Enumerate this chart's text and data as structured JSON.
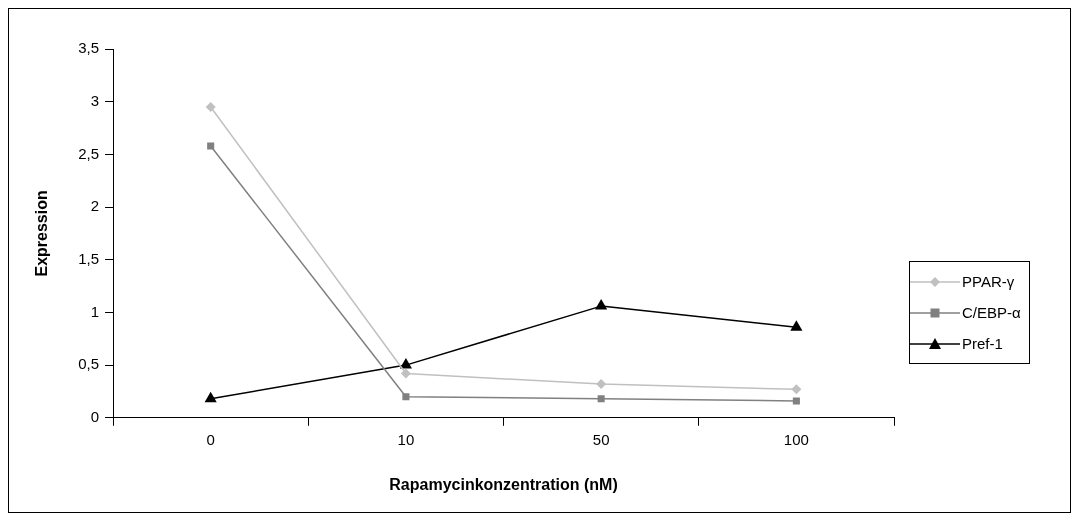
{
  "chart_data": {
    "type": "line",
    "xlabel": "Rapamycinkonzentration (nM)",
    "ylabel": "Expression",
    "categories": [
      "0",
      "10",
      "50",
      "100"
    ],
    "ylim": [
      0,
      3.5
    ],
    "yticks": [
      0,
      {
        "value": 0.5,
        "label": "0,5"
      },
      1,
      {
        "value": 1.5,
        "label": "1,5"
      },
      2,
      {
        "value": 2.5,
        "label": "2,5"
      },
      3,
      {
        "value": 3.5,
        "label": "3,5"
      }
    ],
    "grid": false,
    "legend": "right",
    "line_style": "solid",
    "series": [
      {
        "name": "PPAR-γ",
        "color": "#c0c0c0",
        "marker": "diamond",
        "values": [
          2.95,
          0.42,
          0.32,
          0.27
        ]
      },
      {
        "name": "C/EBP-α",
        "color": "#808080",
        "marker": "square",
        "values": [
          2.58,
          0.2,
          0.18,
          0.16
        ]
      },
      {
        "name": "Pref-1",
        "color": "#000000",
        "marker": "triangle",
        "values": [
          0.18,
          0.5,
          1.06,
          0.86
        ]
      }
    ]
  }
}
